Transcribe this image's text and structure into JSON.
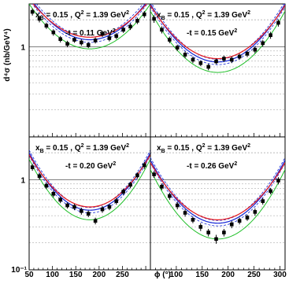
{
  "chart_data": {
    "type": "scatter",
    "xlabel": "ϕ (°)",
    "ylabel": "d⁴σ (nb/GeV⁴)",
    "xlim": [
      50,
      310
    ],
    "ylim_log": [
      0.1,
      3
    ],
    "x_ticks": [
      "50",
      "100",
      "150",
      "200",
      "250",
      "300"
    ],
    "y_ticks": [
      {
        "label": "1",
        "value": 1
      },
      {
        "label": "10⁻¹",
        "value": 0.1
      }
    ],
    "grid": "horizontal minor and major decade lines",
    "colors": {
      "data": "#000000",
      "red": "#e8191c",
      "blue": "#1426d6",
      "green": "#1fbf28"
    },
    "panels": [
      {
        "title_main": "x",
        "title_sub": "B",
        "title_mid": " = 0.15 , Q",
        "title_sup": "2",
        "title_end": " = 1.39 GeV",
        "title_sup2": "2",
        "t_main": "-t = 0.11 GeV",
        "t_sup": "2",
        "points": [
          {
            "x": 57,
            "y": 2.45,
            "err": 0.22
          },
          {
            "x": 72,
            "y": 2.05,
            "err": 0.18
          },
          {
            "x": 87,
            "y": 1.72,
            "err": 0.14
          },
          {
            "x": 102,
            "y": 1.45,
            "err": 0.12
          },
          {
            "x": 117,
            "y": 1.22,
            "err": 0.1
          },
          {
            "x": 132,
            "y": 1.08,
            "err": 0.09
          },
          {
            "x": 147,
            "y": 1.2,
            "err": 0.09
          },
          {
            "x": 162,
            "y": 1.12,
            "err": 0.09
          },
          {
            "x": 177,
            "y": 1.05,
            "err": 0.08
          },
          {
            "x": 192,
            "y": 1.18,
            "err": 0.09
          },
          {
            "x": 207,
            "y": 1.4,
            "err": 0.11
          },
          {
            "x": 222,
            "y": 1.25,
            "err": 0.1
          },
          {
            "x": 237,
            "y": 1.32,
            "err": 0.1
          },
          {
            "x": 252,
            "y": 1.55,
            "err": 0.12
          },
          {
            "x": 267,
            "y": 1.68,
            "err": 0.14
          },
          {
            "x": 282,
            "y": 1.95,
            "err": 0.16
          },
          {
            "x": 297,
            "y": 2.3,
            "err": 0.2
          }
        ],
        "curves": {
          "red": {
            "min": 1.28,
            "max": 3.4,
            "center": 180
          },
          "blue": {
            "min": 1.2,
            "max": 3.6,
            "center": 180
          },
          "green": {
            "min": 0.95,
            "max": 3.0,
            "center": 180
          }
        }
      },
      {
        "title_main": "x",
        "title_sub": "B",
        "title_mid": " = 0.15 , Q",
        "title_sup": "2",
        "title_end": " = 1.39 GeV",
        "title_sup2": "2",
        "t_main": "-t = 0.15 GeV",
        "t_sup": "2",
        "points": [
          {
            "x": 57,
            "y": 2.05,
            "err": 0.2
          },
          {
            "x": 72,
            "y": 1.55,
            "err": 0.14
          },
          {
            "x": 87,
            "y": 1.2,
            "err": 0.1
          },
          {
            "x": 102,
            "y": 0.98,
            "err": 0.08
          },
          {
            "x": 117,
            "y": 0.82,
            "err": 0.07
          },
          {
            "x": 132,
            "y": 0.72,
            "err": 0.06
          },
          {
            "x": 147,
            "y": 0.66,
            "err": 0.05
          },
          {
            "x": 162,
            "y": 0.6,
            "err": 0.05
          },
          {
            "x": 177,
            "y": 0.69,
            "err": 0.05
          },
          {
            "x": 192,
            "y": 0.74,
            "err": 0.06
          },
          {
            "x": 207,
            "y": 0.72,
            "err": 0.06
          },
          {
            "x": 222,
            "y": 0.78,
            "err": 0.06
          },
          {
            "x": 237,
            "y": 0.84,
            "err": 0.07
          },
          {
            "x": 252,
            "y": 0.93,
            "err": 0.08
          },
          {
            "x": 267,
            "y": 1.1,
            "err": 0.09
          },
          {
            "x": 282,
            "y": 1.35,
            "err": 0.12
          },
          {
            "x": 297,
            "y": 1.85,
            "err": 0.17
          }
        ],
        "curves": {
          "red": {
            "min": 0.74,
            "max": 2.9,
            "center": 180
          },
          "blue": {
            "min": 0.68,
            "max": 3.0,
            "center": 180
          },
          "green": {
            "min": 0.52,
            "max": 2.5,
            "center": 180
          }
        }
      },
      {
        "title_main": "x",
        "title_sub": "B",
        "title_mid": " = 0.15 , Q",
        "title_sup": "2",
        "title_end": " = 1.39 GeV",
        "title_sup2": "2",
        "t_main": "-t = 0.20 GeV",
        "t_sup": "2",
        "points": [
          {
            "x": 57,
            "y": 1.38,
            "err": 0.12
          },
          {
            "x": 72,
            "y": 1.1,
            "err": 0.09
          },
          {
            "x": 87,
            "y": 0.86,
            "err": 0.07
          },
          {
            "x": 102,
            "y": 0.7,
            "err": 0.06
          },
          {
            "x": 117,
            "y": 0.6,
            "err": 0.05
          },
          {
            "x": 132,
            "y": 0.52,
            "err": 0.04
          },
          {
            "x": 147,
            "y": 0.5,
            "err": 0.04
          },
          {
            "x": 162,
            "y": 0.45,
            "err": 0.04
          },
          {
            "x": 177,
            "y": 0.42,
            "err": 0.035
          },
          {
            "x": 192,
            "y": 0.35,
            "err": 0.03
          },
          {
            "x": 207,
            "y": 0.47,
            "err": 0.04
          },
          {
            "x": 222,
            "y": 0.5,
            "err": 0.04
          },
          {
            "x": 237,
            "y": 0.58,
            "err": 0.05
          },
          {
            "x": 252,
            "y": 0.74,
            "err": 0.06
          },
          {
            "x": 267,
            "y": 0.88,
            "err": 0.07
          },
          {
            "x": 282,
            "y": 1.12,
            "err": 0.09
          },
          {
            "x": 297,
            "y": 1.45,
            "err": 0.13
          }
        ],
        "curves": {
          "red": {
            "min": 0.5,
            "max": 1.9,
            "center": 180
          },
          "blue": {
            "min": 0.46,
            "max": 2.0,
            "center": 180
          },
          "green": {
            "min": 0.36,
            "max": 1.7,
            "center": 180
          }
        }
      },
      {
        "title_main": "x",
        "title_sub": "B",
        "title_mid": " = 0.15 , Q",
        "title_sup": "2",
        "title_end": " = 1.39 GeV",
        "title_sup2": "2",
        "t_main": "-t = 0.26 GeV",
        "t_sup": "2",
        "points": [
          {
            "x": 57,
            "y": 1.15,
            "err": 0.1
          },
          {
            "x": 72,
            "y": 0.84,
            "err": 0.07
          },
          {
            "x": 87,
            "y": 0.66,
            "err": 0.06
          },
          {
            "x": 102,
            "y": 0.52,
            "err": 0.05
          },
          {
            "x": 117,
            "y": 0.43,
            "err": 0.04
          },
          {
            "x": 132,
            "y": 0.36,
            "err": 0.03
          },
          {
            "x": 147,
            "y": 0.3,
            "err": 0.03
          },
          {
            "x": 162,
            "y": 0.26,
            "err": 0.025
          },
          {
            "x": 177,
            "y": 0.22,
            "err": 0.025
          },
          {
            "x": 192,
            "y": 0.26,
            "err": 0.025
          },
          {
            "x": 207,
            "y": 0.32,
            "err": 0.03
          },
          {
            "x": 222,
            "y": 0.35,
            "err": 0.03
          },
          {
            "x": 237,
            "y": 0.38,
            "err": 0.03
          },
          {
            "x": 252,
            "y": 0.44,
            "err": 0.04
          },
          {
            "x": 267,
            "y": 0.58,
            "err": 0.05
          },
          {
            "x": 282,
            "y": 0.75,
            "err": 0.06
          },
          {
            "x": 297,
            "y": 0.98,
            "err": 0.09
          }
        ],
        "curves": {
          "red": {
            "min": 0.36,
            "max": 1.55,
            "center": 180
          },
          "blue": {
            "min": 0.33,
            "max": 1.65,
            "center": 180
          },
          "green": {
            "min": 0.22,
            "max": 1.3,
            "center": 180
          }
        }
      }
    ]
  }
}
